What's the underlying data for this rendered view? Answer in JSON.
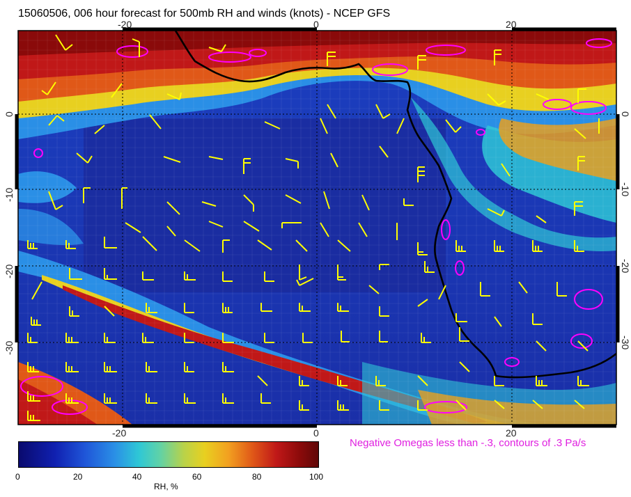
{
  "title": "15060506, 006 hour forecast for 500mb RH and winds (knots) - NCEP GFS",
  "map": {
    "lon_ticks": [
      "-20",
      "0",
      "20"
    ],
    "lat_ticks": [
      "0",
      "-10",
      "-20",
      "-30"
    ],
    "coastline_color": "#000000",
    "wind_barb_color": "#ffff00",
    "omega_contour_color": "#ff00ff"
  },
  "omega_note": "Negative Omegas less than -.3, contours of .3 Pa/s",
  "colorbar": {
    "labels": [
      "0",
      "20",
      "40",
      "60",
      "80",
      "100"
    ],
    "title": "RH, %"
  }
}
